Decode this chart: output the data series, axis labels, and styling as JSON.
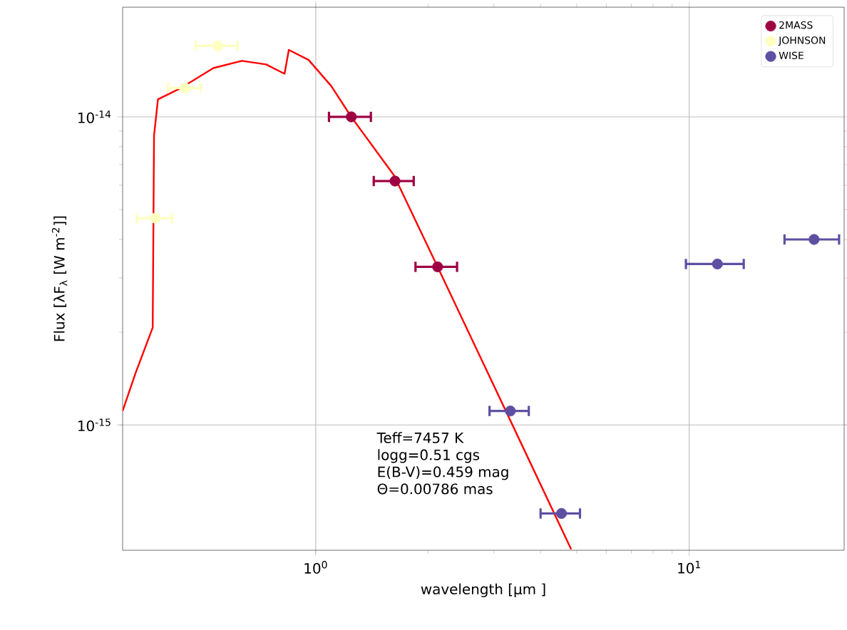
{
  "chart_data": {
    "type": "scatter",
    "xlabel": "wavelength [μm ]",
    "ylabel": "Flux [λF$_{λ}$ [W  m$^{-2}$]]",
    "log": "xy",
    "grid": true,
    "legend": "top right",
    "xlim": [
      0.304,
      26
    ],
    "ylim": [
      3.92e-16,
      2.27e-14
    ],
    "xticks": [
      {
        "value": 1,
        "label": "10$^{0}$"
      },
      {
        "value": 10,
        "label": "10$^{1}$"
      }
    ],
    "yticks": [
      {
        "value": 1e-15,
        "label": "10$^{-15}$"
      },
      {
        "value": 1e-14,
        "label": "10$^{-14}$"
      }
    ],
    "series": [
      {
        "type": "line",
        "color": "#ff0000",
        "line_style": "solid",
        "marker": "none",
        "x": [
          0.304,
          0.329,
          0.366,
          0.369,
          0.378,
          0.435,
          0.532,
          0.634,
          0.736,
          0.825,
          0.847,
          0.957,
          1.1,
          1.245,
          1.62,
          2.12,
          3.35,
          4.83
        ],
        "values": [
          1.11e-15,
          1.47e-15,
          2.07e-15,
          8.7e-15,
          1.14e-14,
          1.24e-14,
          1.44e-14,
          1.52e-14,
          1.48e-14,
          1.38e-14,
          1.65e-14,
          1.53e-14,
          1.26e-14,
          1e-14,
          6.46e-15,
          3.26e-15,
          1.01e-15,
          3.95e-16
        ]
      },
      {
        "name": "2MASS",
        "color": "#9e0142",
        "marker": "circle",
        "x": [
          1.245,
          1.63,
          2.12
        ],
        "values": [
          1e-14,
          6.19e-15,
          3.26e-15
        ],
        "xerrors": [
          0.16,
          0.2,
          0.27
        ]
      },
      {
        "name": "JOHNSON",
        "color": "#ffffbf",
        "marker": "circle",
        "x": [
          0.372,
          0.447,
          0.547
        ],
        "values": [
          4.69e-15,
          1.24e-14,
          1.7e-14
        ],
        "xerrors": [
          0.04,
          0.045,
          0.07
        ]
      },
      {
        "name": "WISE",
        "color": "#5e4fa2",
        "marker": "circle",
        "x": [
          3.32,
          4.55,
          11.9,
          21.6
        ],
        "values": [
          1.11e-15,
          5.16e-16,
          3.33e-15,
          4e-15
        ],
        "xerrors": [
          0.4,
          0.55,
          2.1,
          3.6
        ]
      }
    ],
    "annotations": [
      "Teff=7457 K",
      "logg=0.51 cgs",
      "E(B-V)=0.459 mag",
      "Θ=0.00786 mas"
    ]
  }
}
